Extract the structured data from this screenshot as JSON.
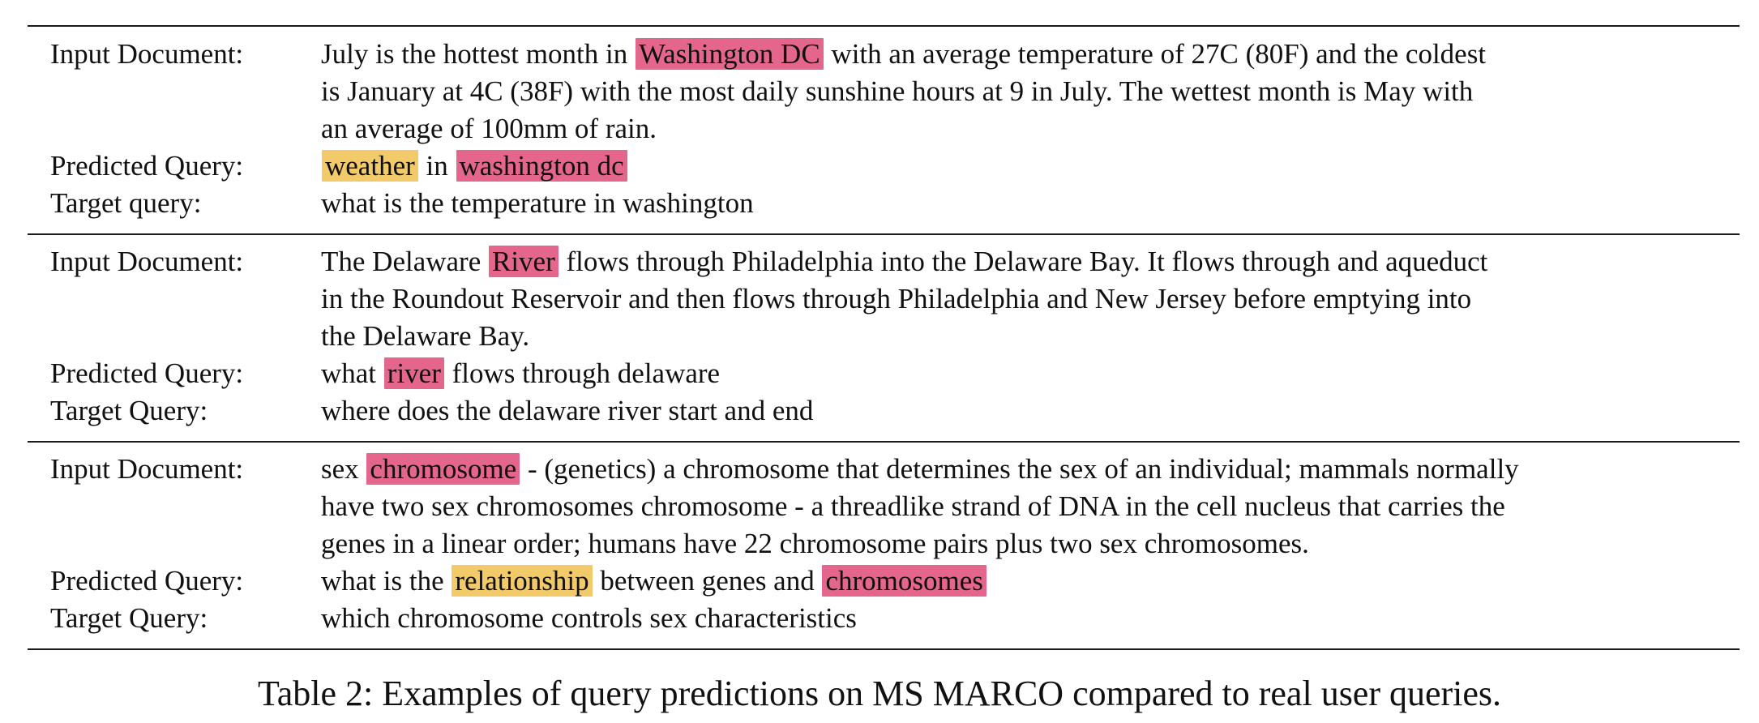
{
  "colors": {
    "highlight_pink": "#E5668C",
    "highlight_yellow": "#F2CA6A"
  },
  "examples": [
    {
      "document_label": "Input Document:",
      "document_lines": [
        [
          {
            "t": "July is the hottest month in "
          },
          {
            "t": "Washington DC",
            "h": "pink"
          },
          {
            "t": " with an average temperature of 27C (80F) and the coldest"
          }
        ],
        [
          {
            "t": "is January at 4C (38F) with the most daily sunshine hours at 9 in July. The wettest month is May with"
          }
        ],
        [
          {
            "t": "an average of 100mm of rain."
          }
        ]
      ],
      "predicted_label": "Predicted Query:",
      "predicted": [
        {
          "t": "weather",
          "h": "yellow"
        },
        {
          "t": " in "
        },
        {
          "t": "washington dc",
          "h": "pink"
        }
      ],
      "target_label": "Target query:",
      "target": "what is the temperature in washington"
    },
    {
      "document_label": "Input Document:",
      "document_lines": [
        [
          {
            "t": "The Delaware "
          },
          {
            "t": "River",
            "h": "pink"
          },
          {
            "t": " flows through Philadelphia into the Delaware Bay. It flows through and aqueduct"
          }
        ],
        [
          {
            "t": "in the Roundout Reservoir and then flows through Philadelphia and New Jersey before emptying into"
          }
        ],
        [
          {
            "t": "the Delaware Bay."
          }
        ]
      ],
      "predicted_label": "Predicted Query:",
      "predicted": [
        {
          "t": "what "
        },
        {
          "t": "river",
          "h": "pink"
        },
        {
          "t": " flows through delaware"
        }
      ],
      "target_label": "Target Query:",
      "target": "where does the delaware river start and end"
    },
    {
      "document_label": "Input Document:",
      "document_lines": [
        [
          {
            "t": "sex "
          },
          {
            "t": "chromosome",
            "h": "pink"
          },
          {
            "t": " - (genetics) a chromosome that determines the sex of an individual; mammals normally"
          }
        ],
        [
          {
            "t": "have two sex chromosomes chromosome - a threadlike strand of DNA in the cell nucleus that carries the"
          }
        ],
        [
          {
            "t": "genes in a linear order; humans have 22 chromosome pairs plus two sex chromosomes."
          }
        ]
      ],
      "predicted_label": "Predicted Query:",
      "predicted": [
        {
          "t": "what is the "
        },
        {
          "t": "relationship",
          "h": "yellow"
        },
        {
          "t": " between genes and "
        },
        {
          "t": "chromosomes",
          "h": "pink"
        }
      ],
      "target_label": "Target Query:",
      "target": "which chromosome controls sex characteristics"
    }
  ],
  "caption": "Table 2: Examples of query predictions on MS MARCO compared to real user queries."
}
